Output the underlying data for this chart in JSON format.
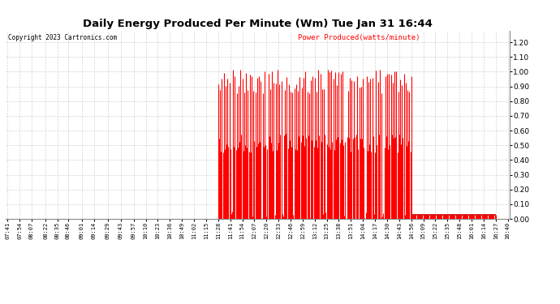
{
  "title": "Daily Energy Produced Per Minute (Wm) Tue Jan 31 16:44",
  "copyright": "Copyright 2023 Cartronics.com",
  "legend_label": "Power Produced(watts/minute)",
  "ylabel_ticks": [
    0.0,
    0.1,
    0.2,
    0.3,
    0.4,
    0.5,
    0.6,
    0.7,
    0.8,
    0.9,
    1.0,
    1.1,
    1.2
  ],
  "ylim": [
    0.0,
    1.28
  ],
  "background_color": "#ffffff",
  "plot_bg_color": "#ffffff",
  "grid_color": "#c8c8c8",
  "bar_color": "#ff0000",
  "line_color": "#cc0000",
  "x_tick_labels": [
    "07:41",
    "07:54",
    "08:07",
    "08:22",
    "08:35",
    "08:46",
    "09:01",
    "09:14",
    "09:29",
    "09:43",
    "09:57",
    "10:10",
    "10:23",
    "10:36",
    "10:49",
    "11:02",
    "11:15",
    "11:28",
    "11:41",
    "11:54",
    "12:07",
    "12:20",
    "12:33",
    "12:46",
    "12:59",
    "13:12",
    "13:25",
    "13:38",
    "13:51",
    "14:04",
    "14:17",
    "14:30",
    "14:43",
    "14:56",
    "15:09",
    "15:22",
    "15:35",
    "15:48",
    "16:01",
    "16:14",
    "16:27",
    "16:40"
  ],
  "active_start_label": "11:28",
  "active_end_label": "14:56",
  "flat_end_label": "16:27",
  "seed": 42
}
